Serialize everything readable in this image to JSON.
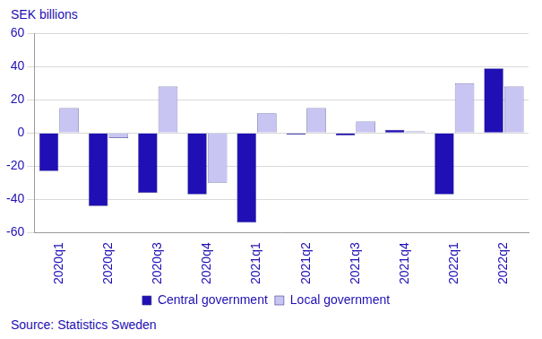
{
  "chart_data": {
    "type": "bar",
    "ylabel": "SEK billions",
    "source": "Source: Statistics Sweden",
    "categories": [
      "2020q1",
      "2020q2",
      "2020q3",
      "2020q4",
      "2021q1",
      "2021q2",
      "2021q3",
      "2021q4",
      "2022q1",
      "2022q2"
    ],
    "series": [
      {
        "name": "Central government",
        "color": "#1f0fb4",
        "values": [
          -23,
          -44,
          -36,
          -37,
          -54,
          -1,
          -1.5,
          2,
          -37,
          39
        ]
      },
      {
        "name": "Local government",
        "color": "#c9c5f2",
        "values": [
          15,
          -3,
          28,
          -30,
          12,
          15,
          7,
          1,
          30,
          28
        ]
      }
    ],
    "ylim": [
      -60,
      60
    ],
    "yticks": [
      -60,
      -40,
      -20,
      0,
      20,
      40,
      60
    ],
    "grid": true,
    "legend": "bottom"
  }
}
